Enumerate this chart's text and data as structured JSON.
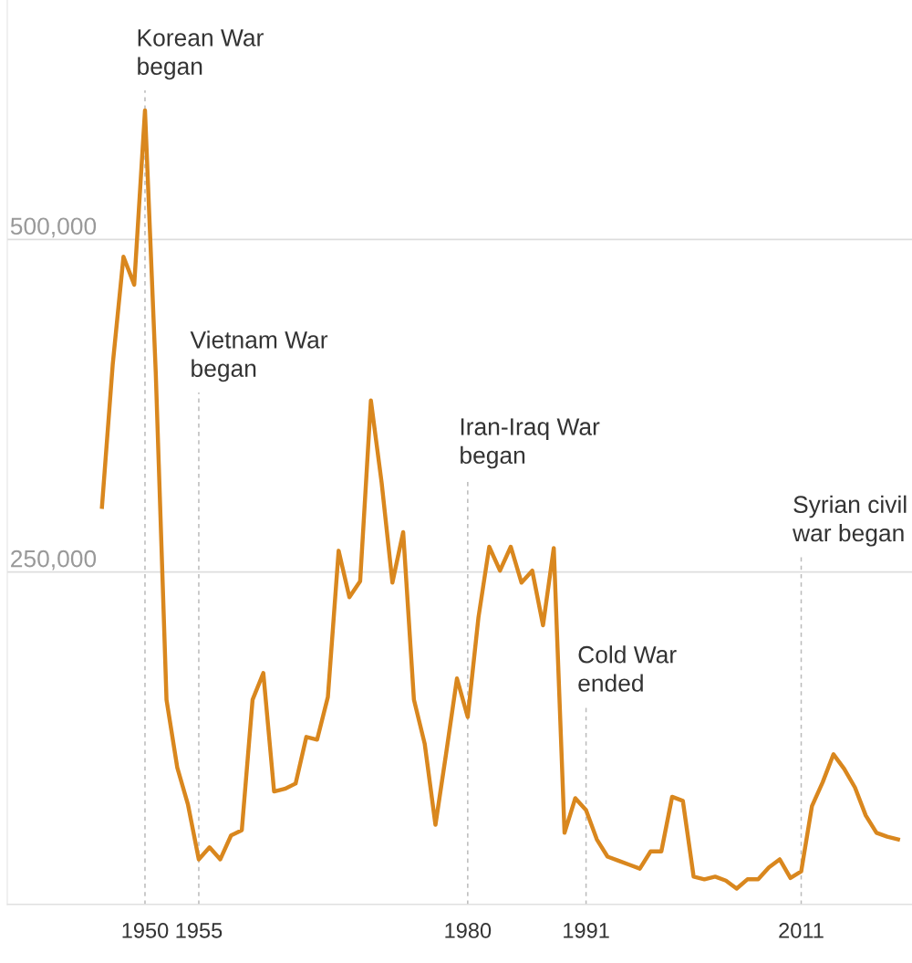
{
  "chart_data": {
    "type": "line",
    "x": [
      1946,
      1947,
      1948,
      1949,
      1950,
      1951,
      1952,
      1953,
      1954,
      1955,
      1956,
      1957,
      1958,
      1959,
      1960,
      1961,
      1962,
      1963,
      1964,
      1965,
      1966,
      1967,
      1968,
      1969,
      1970,
      1971,
      1972,
      1973,
      1974,
      1975,
      1976,
      1977,
      1978,
      1979,
      1980,
      1981,
      1982,
      1983,
      1984,
      1985,
      1986,
      1987,
      1988,
      1989,
      1990,
      1991,
      1992,
      1993,
      1994,
      1995,
      1996,
      1997,
      1998,
      1999,
      2000,
      2001,
      2002,
      2003,
      2004,
      2005,
      2006,
      2007,
      2008,
      2009,
      2010,
      2011,
      2012,
      2013,
      2014,
      2015,
      2016,
      2017,
      2018,
      2019,
      2020
    ],
    "series": [
      {
        "color": "#d9871e",
        "values": [
          299000,
          406000,
          487000,
          466000,
          597000,
          400000,
          154000,
          103000,
          75000,
          34000,
          43000,
          34000,
          52000,
          56000,
          154000,
          174000,
          85000,
          87000,
          91000,
          126000,
          124000,
          156000,
          266000,
          231000,
          243000,
          379000,
          317000,
          242000,
          280000,
          154000,
          121000,
          60000,
          114000,
          170000,
          141000,
          216000,
          269000,
          251000,
          269000,
          242000,
          251000,
          210000,
          268000,
          54000,
          80000,
          71000,
          49000,
          36000,
          33000,
          30000,
          27000,
          40000,
          40000,
          81000,
          78000,
          21000,
          19000,
          21000,
          18000,
          12000,
          19000,
          19000,
          28000,
          34000,
          20000,
          25000,
          74000,
          92000,
          113000,
          102000,
          88000,
          67000,
          54000,
          51000,
          49000
        ]
      }
    ],
    "xlim": [
      1937.2,
      2021.3
    ],
    "ylim": [
      0,
      680000
    ],
    "xticks": [
      1950,
      1955,
      1980,
      1991,
      2011
    ],
    "yticks": [
      {
        "value": 0,
        "label": null
      },
      {
        "value": 250000,
        "label": "250,000"
      },
      {
        "value": 500000,
        "label": "500,000"
      }
    ],
    "grid": "y",
    "legend": false,
    "marker": "none",
    "line_style": "solid",
    "ref_lines": [
      {
        "axis": "x",
        "value": 1950,
        "label": "Korean War\nbegan",
        "color": "#bbbbbb",
        "line_style": "dashed"
      },
      {
        "axis": "x",
        "value": 1955,
        "label": "Vietnam War\nbegan",
        "color": "#bbbbbb",
        "line_style": "dashed"
      },
      {
        "axis": "x",
        "value": 1980,
        "label": "Iran-Iraq War\nbegan",
        "color": "#bbbbbb",
        "line_style": "dashed"
      },
      {
        "axis": "x",
        "value": 1991,
        "label": "Cold War\nended",
        "color": "#bbbbbb",
        "line_style": "dashed"
      },
      {
        "axis": "x",
        "value": 2011,
        "label": "Syrian civil\nwar began",
        "color": "#bbbbbb",
        "line_style": "dashed"
      }
    ]
  }
}
